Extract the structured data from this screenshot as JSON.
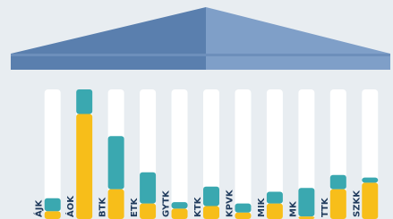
{
  "chart_data": {
    "type": "bar",
    "stacked": true,
    "categories": [
      "ÁJK",
      "ÁOK",
      "BTK",
      "ETK",
      "GYTK",
      "KTK",
      "KPVK",
      "MIK",
      "MK",
      "TTK",
      "SZKK"
    ],
    "series": [
      {
        "color": "#f7be1a",
        "values": [
          6,
          81,
          23,
          12,
          8,
          10,
          5,
          12,
          2,
          23,
          28
        ]
      },
      {
        "color": "#3aa8b0",
        "values": [
          10,
          19,
          41,
          24,
          5,
          15,
          7,
          9,
          22,
          11,
          4
        ]
      }
    ],
    "ylim": [
      0,
      100
    ]
  }
}
